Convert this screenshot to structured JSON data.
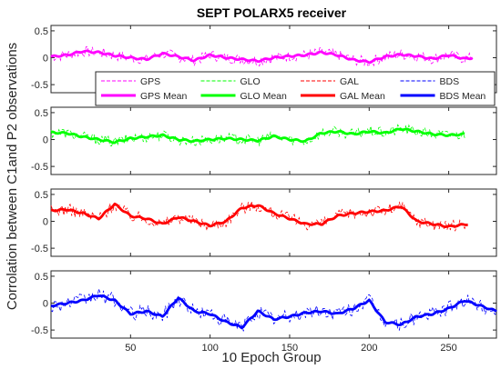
{
  "chart_data": {
    "type": "line",
    "title": "SEPT POLARX5 receiver",
    "xlabel": "10 Epoch Group",
    "ylabel": "Corrolation between C1and P2 observations",
    "xlim": [
      0,
      280
    ],
    "x_ticks": [
      "50",
      "100",
      "150",
      "200",
      "250"
    ],
    "y_ticks": [
      "0.5",
      "0",
      "-0.5"
    ],
    "grid": false,
    "legend_location": "inside top panel, bottom",
    "legend": [
      {
        "label": "GPS",
        "style": "dashed",
        "color": "#ff00ff"
      },
      {
        "label": "GLO",
        "style": "dashed",
        "color": "#00ff00"
      },
      {
        "label": "GAL",
        "style": "dashed",
        "color": "#ff0000"
      },
      {
        "label": "BDS",
        "style": "dashed",
        "color": "#0000ff"
      },
      {
        "label": "GPS Mean",
        "style": "solid",
        "color": "#ff00ff"
      },
      {
        "label": "GLO Mean",
        "style": "solid",
        "color": "#00ff00"
      },
      {
        "label": "GAL Mean",
        "style": "solid",
        "color": "#ff0000"
      },
      {
        "label": "BDS Mean",
        "style": "solid",
        "color": "#0000ff"
      }
    ],
    "panels": [
      {
        "system": "GPS",
        "color": "#ff00ff",
        "ylim": [
          -0.65,
          0.6
        ],
        "x_end": 265,
        "noise": 0.1,
        "mean_x": [
          0,
          10,
          20,
          30,
          40,
          50,
          60,
          70,
          80,
          90,
          100,
          110,
          120,
          130,
          140,
          150,
          160,
          170,
          180,
          190,
          200,
          210,
          220,
          230,
          240,
          250,
          260,
          265
        ],
        "mean_y": [
          0.02,
          0.05,
          0.12,
          0.1,
          0.04,
          0.0,
          -0.03,
          0.08,
          0.02,
          -0.05,
          0.05,
          0.0,
          -0.03,
          -0.06,
          0.0,
          0.03,
          0.05,
          0.1,
          0.05,
          -0.04,
          -0.08,
          0.02,
          0.06,
          0.03,
          -0.02,
          0.05,
          -0.02,
          0.0
        ]
      },
      {
        "system": "GLO",
        "color": "#00ff00",
        "ylim": [
          -0.65,
          0.6
        ],
        "x_end": 260,
        "noise": 0.1,
        "mean_x": [
          0,
          10,
          20,
          30,
          40,
          50,
          60,
          70,
          80,
          90,
          100,
          110,
          120,
          130,
          140,
          150,
          160,
          170,
          180,
          190,
          200,
          210,
          220,
          230,
          240,
          250,
          260
        ],
        "mean_y": [
          0.13,
          0.12,
          0.05,
          0.0,
          -0.05,
          0.02,
          0.05,
          0.08,
          0.0,
          -0.03,
          0.0,
          0.02,
          0.0,
          -0.02,
          0.06,
          0.0,
          -0.03,
          0.12,
          0.15,
          0.1,
          0.15,
          0.12,
          0.2,
          0.15,
          0.1,
          0.08,
          0.1
        ]
      },
      {
        "system": "GAL",
        "color": "#ff0000",
        "ylim": [
          -0.65,
          0.6
        ],
        "x_end": 262,
        "noise": 0.11,
        "mean_x": [
          0,
          10,
          20,
          30,
          40,
          50,
          60,
          70,
          80,
          90,
          100,
          110,
          120,
          130,
          140,
          150,
          160,
          170,
          180,
          190,
          200,
          210,
          220,
          230,
          240,
          250,
          262
        ],
        "mean_y": [
          0.2,
          0.22,
          0.15,
          0.05,
          0.32,
          0.1,
          0.05,
          -0.05,
          0.08,
          0.0,
          -0.08,
          0.0,
          0.25,
          0.3,
          0.15,
          0.05,
          -0.05,
          -0.05,
          0.1,
          0.15,
          0.18,
          0.2,
          0.28,
          0.0,
          -0.05,
          -0.1,
          -0.05
        ]
      },
      {
        "system": "BDS",
        "color": "#0000ff",
        "ylim": [
          -0.65,
          0.6
        ],
        "x_end": 280,
        "noise": 0.13,
        "mean_x": [
          0,
          10,
          20,
          30,
          40,
          50,
          60,
          70,
          80,
          90,
          100,
          110,
          120,
          130,
          140,
          150,
          160,
          170,
          180,
          190,
          200,
          210,
          220,
          230,
          240,
          250,
          260,
          270,
          280
        ],
        "mean_y": [
          -0.05,
          0.0,
          0.05,
          0.15,
          0.05,
          -0.2,
          -0.15,
          -0.25,
          0.1,
          -0.15,
          -0.2,
          -0.35,
          -0.45,
          -0.15,
          -0.3,
          -0.25,
          -0.18,
          -0.15,
          -0.2,
          -0.1,
          0.05,
          -0.35,
          -0.4,
          -0.25,
          -0.2,
          -0.1,
          0.05,
          -0.05,
          -0.15
        ]
      }
    ]
  }
}
